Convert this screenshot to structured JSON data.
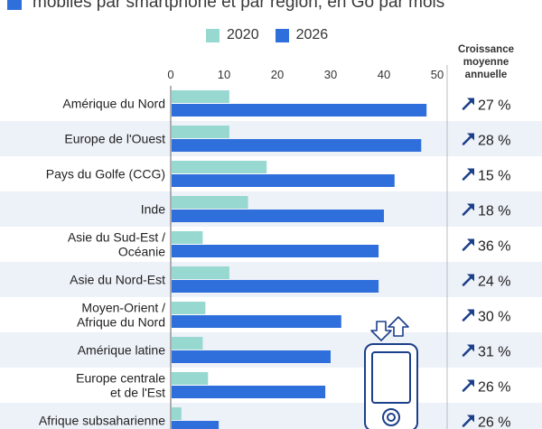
{
  "heading": "mobiles par smartphone et par région, en Go par mois",
  "growth_header": "Croissance moyenne annuelle",
  "colors": {
    "s2020": "#97d8d1",
    "s2026": "#2f6fdb",
    "band": "#edf1f8",
    "arrow": "#1c3f8a"
  },
  "chart_data": {
    "type": "bar",
    "orientation": "horizontal",
    "categories": [
      "Amérique du Nord",
      "Europe de l'Ouest",
      "Pays du Golfe (CCG)",
      "Inde",
      "Asie du Sud-Est / Océanie",
      "Asie du Nord-Est",
      "Moyen-Orient / Afrique du Nord",
      "Amérique latine",
      "Europe centrale et de l'Est",
      "Afrique subsaharienne"
    ],
    "series": [
      {
        "name": "2020",
        "values": [
          11,
          11,
          18,
          14.5,
          6,
          11,
          6.5,
          6,
          7,
          2
        ]
      },
      {
        "name": "2026",
        "values": [
          48,
          47,
          42,
          40,
          39,
          39,
          32,
          30,
          29,
          9
        ]
      }
    ],
    "growth": [
      "27 %",
      "28 %",
      "15 %",
      "18 %",
      "36 %",
      "24 %",
      "30 %",
      "31 %",
      "26 %",
      "26 %"
    ],
    "xticks": [
      0,
      10,
      20,
      30,
      40,
      50
    ],
    "xlim": [
      0,
      50
    ]
  }
}
